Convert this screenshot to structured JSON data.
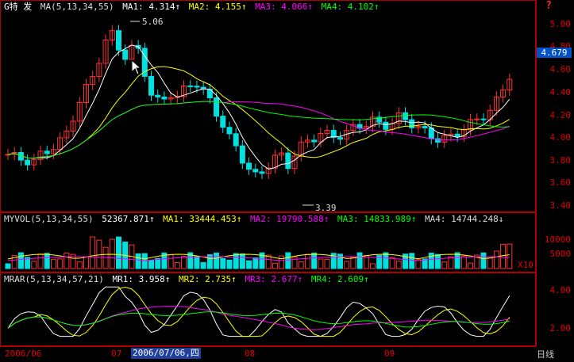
{
  "price_panel": {
    "stock_name": "G特 发",
    "indicator": "MA(5,13,34,55)",
    "ma1": "MA1: 4.314↑",
    "ma2": "MA2: 4.155↑",
    "ma3": "MA3: 4.066↑",
    "ma4": "MA4: 4.102↑",
    "ticks": [
      "5.00",
      "4.80",
      "4.60",
      "4.40",
      "4.20",
      "4.00",
      "3.80",
      "3.60",
      "3.40"
    ],
    "last_price": "4.679",
    "high_annotation": "5.06",
    "low_annotation": "3.39"
  },
  "volume_panel": {
    "indicator": "MYVOL(5,13,34,55)",
    "value": "52367.871↑",
    "ma1": "MA1: 33444.453↑",
    "ma2": "MA2: 19790.588↑",
    "ma3": "MA3: 14833.989↑",
    "ma4": "MA4: 14744.248↓",
    "ticks": [
      "10000",
      "5000"
    ],
    "unit": "X10"
  },
  "mrar_panel": {
    "indicator": "MRAR(5,13,34,57,21)",
    "mr1": "MR1: 3.958↑",
    "mr2": "MR2: 2.735↑",
    "mr3": "MR3: 2.677↑",
    "mr4": "MR4: 2.609↑",
    "ticks": [
      "4.00",
      "2.00"
    ]
  },
  "x_axis": {
    "labels": [
      "2006/06",
      "07",
      "08",
      "09"
    ],
    "cursor_date": "2006/07/06,四"
  },
  "period_button": "日线",
  "help_icon": "?",
  "colors": {
    "bg": "#000000",
    "up": "#ff3232",
    "down": "#00e0e0",
    "ma1": "#ffffff",
    "ma2": "#ffff00",
    "ma3": "#ff00ff",
    "ma4": "#00ff00",
    "axis": "#b00000"
  }
}
